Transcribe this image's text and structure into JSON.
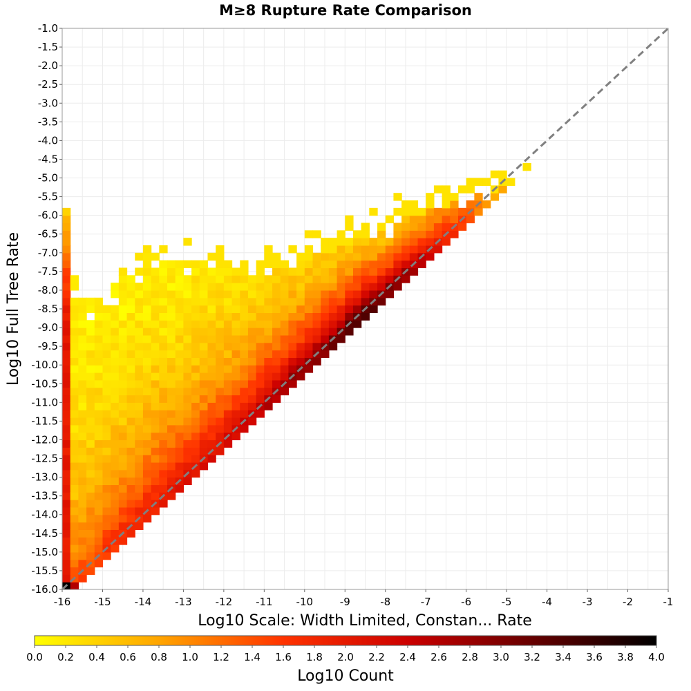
{
  "chart_data": {
    "type": "heatmap",
    "title": "M≥8 Rupture Rate Comparison",
    "xlabel": "Log10 Scale: Width Limited, Constan... Rate",
    "ylabel": "Log10 Full Tree Rate",
    "colorbar_label": "Log10 Count",
    "xlim": [
      -16,
      -1
    ],
    "ylim": [
      -16,
      -1
    ],
    "x_ticks": [
      "-16",
      "-15",
      "-14",
      "-13",
      "-12",
      "-11",
      "-10",
      "-9",
      "-8",
      "-7",
      "-6",
      "-5",
      "-4",
      "-3",
      "-2",
      "-1"
    ],
    "y_ticks": [
      "-1.0",
      "-1.5",
      "-2.0",
      "-2.5",
      "-3.0",
      "-3.5",
      "-4.0",
      "-4.5",
      "-5.0",
      "-5.5",
      "-6.0",
      "-6.5",
      "-7.0",
      "-7.5",
      "-8.0",
      "-8.5",
      "-9.0",
      "-9.5",
      "-10.0",
      "-10.5",
      "-11.0",
      "-11.5",
      "-12.0",
      "-12.5",
      "-13.0",
      "-13.5",
      "-14.0",
      "-14.5",
      "-15.0",
      "-15.5",
      "-16.0"
    ],
    "colorbar_range": [
      0,
      4
    ],
    "colorbar_ticks": [
      "0.0",
      "0.2",
      "0.4",
      "0.6",
      "0.8",
      "1.0",
      "1.2",
      "1.4",
      "1.6",
      "1.8",
      "2.0",
      "2.2",
      "2.4",
      "2.6",
      "2.8",
      "3.0",
      "3.2",
      "3.4",
      "3.6",
      "3.8",
      "4.0"
    ],
    "colormap": [
      "#ffff00",
      "#ffa500",
      "#ff3300",
      "#cc0000",
      "#660000",
      "#000000"
    ],
    "grid": true,
    "bin_size": 0.2,
    "reference_line": "y = x (dashed gray)",
    "density_model": {
      "note": "approximate log10 count per 0.2x0.2 bin",
      "x_edge_column_value": 2.0,
      "corner_value": 4.0,
      "ridge_values": [
        {
          "x": -15.8,
          "value": 1.3
        },
        {
          "x": -14,
          "value": 1.9
        },
        {
          "x": -12,
          "value": 2.2
        },
        {
          "x": -10,
          "value": 2.8
        },
        {
          "x": -8.5,
          "value": 3.3
        },
        {
          "x": -7,
          "value": 2.4
        },
        {
          "x": -5.5,
          "value": 0.9
        },
        {
          "x": -4.4,
          "value": 0.1
        }
      ],
      "upper_envelope": [
        {
          "x": -15.9,
          "y": -5.8
        },
        {
          "x": -15.6,
          "y": -8.3
        },
        {
          "x": -14,
          "y": -7.0
        },
        {
          "x": -12.5,
          "y": -6.9
        },
        {
          "x": -11,
          "y": -7.1
        },
        {
          "x": -9.5,
          "y": -6.5
        },
        {
          "x": -8,
          "y": -5.8
        },
        {
          "x": -7,
          "y": -5.4
        },
        {
          "x": -6,
          "y": -5.1
        },
        {
          "x": -4.5,
          "y": -4.5
        }
      ],
      "lower_envelope_offset": 0.1
    }
  }
}
